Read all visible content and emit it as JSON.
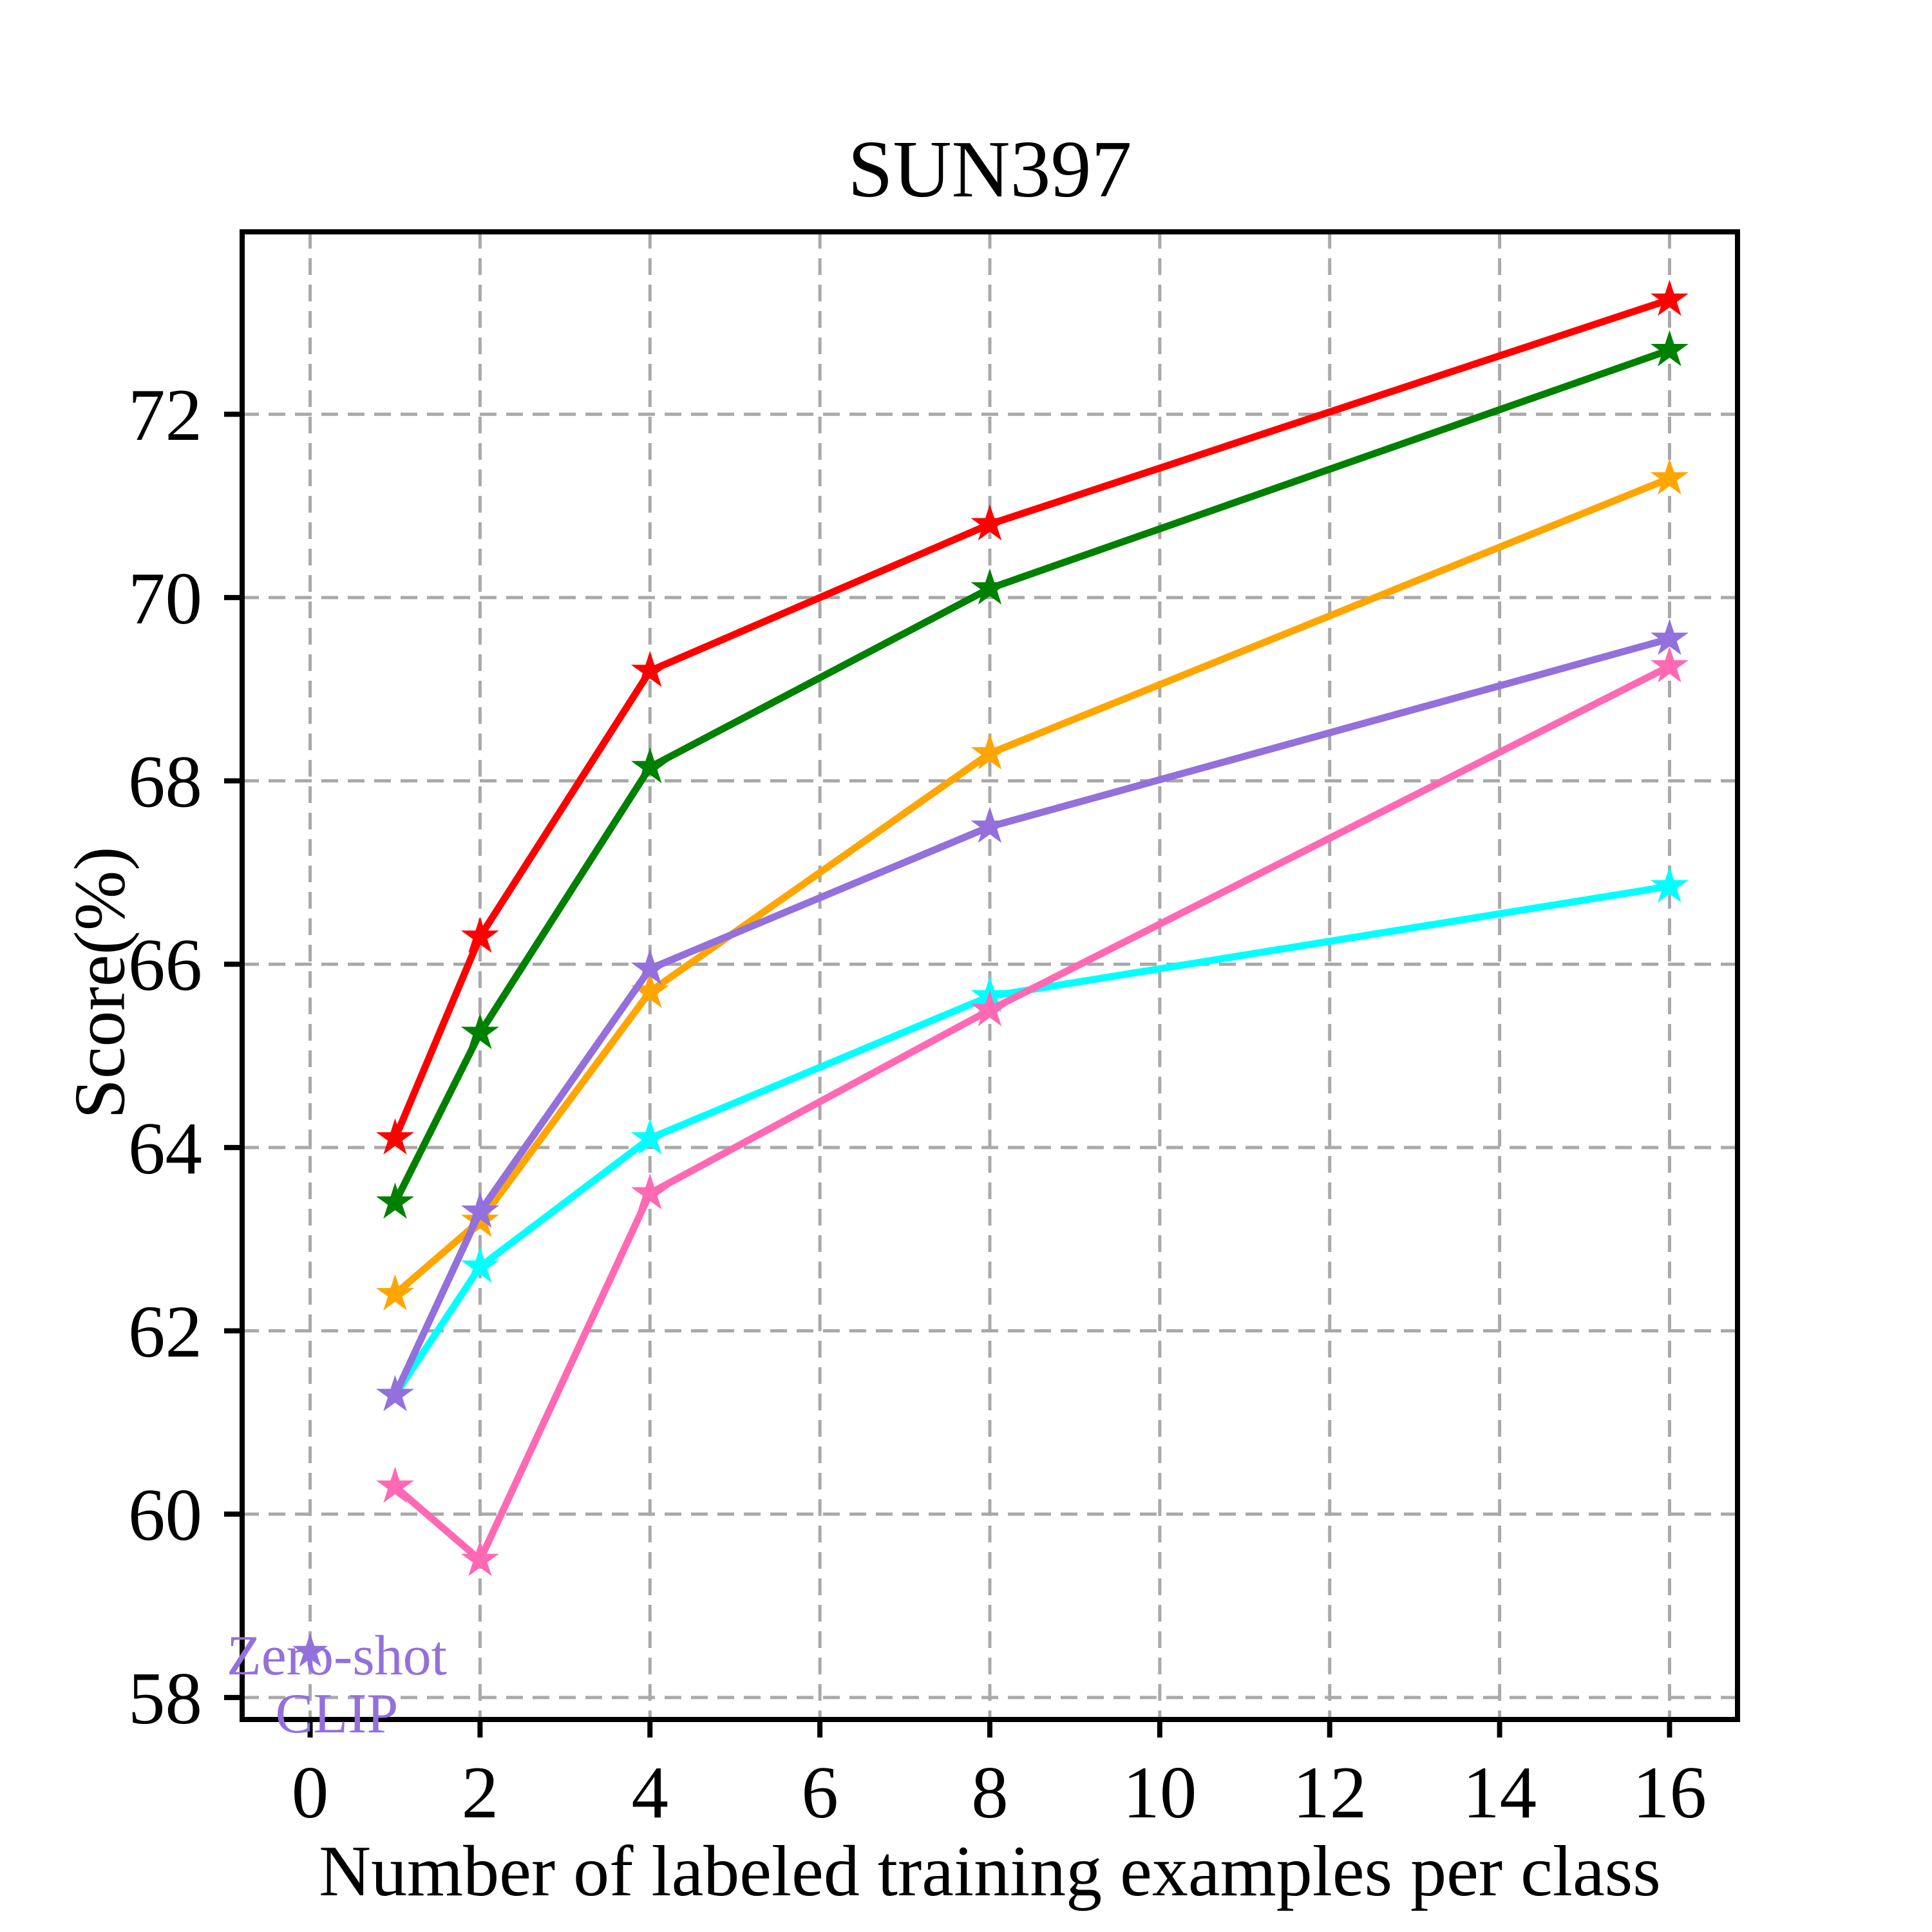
{
  "chart_data": {
    "type": "line",
    "title": "SUN397",
    "xlabel": "Number of labeled training examples per class",
    "ylabel": "Score(%)",
    "xlim": [
      -0.8,
      16.8
    ],
    "ylim": [
      57.76,
      73.99
    ],
    "xticks": [
      0,
      2,
      4,
      6,
      8,
      10,
      12,
      14,
      16
    ],
    "xtick_labels": [
      "0",
      "2",
      "4",
      "6",
      "8",
      "10",
      "12",
      "14",
      "16"
    ],
    "yticks": [
      58,
      60,
      62,
      64,
      66,
      68,
      70,
      72
    ],
    "ytick_labels": [
      "58",
      "60",
      "62",
      "64",
      "66",
      "68",
      "70",
      "72"
    ],
    "grid": "dashed gray both axes",
    "legend_position": "none",
    "marker": "star",
    "x": [
      1,
      2,
      4,
      8,
      16
    ],
    "series": [
      {
        "name": "cyan-series",
        "color": "#00FFFF",
        "values": [
          61.3,
          62.7,
          64.1,
          65.65,
          66.85
        ]
      },
      {
        "name": "pink-series",
        "color": "#FF69B4",
        "values": [
          60.3,
          59.5,
          63.5,
          65.5,
          69.25
        ]
      },
      {
        "name": "orange-series",
        "color": "#FFA500",
        "values": [
          62.4,
          63.2,
          65.7,
          68.3,
          71.3
        ]
      },
      {
        "name": "purple-series",
        "color": "#9370DB",
        "values": [
          61.3,
          63.3,
          65.95,
          67.5,
          69.55
        ]
      },
      {
        "name": "green-series",
        "color": "#008000",
        "values": [
          63.4,
          65.25,
          68.15,
          70.1,
          72.7
        ]
      },
      {
        "name": "red-series",
        "color": "#FF0000",
        "values": [
          64.1,
          66.3,
          69.2,
          70.8,
          73.25
        ]
      }
    ],
    "zero_shot_point": {
      "label_line1": "Zero-shot",
      "label_line2": "CLIP",
      "x": 0,
      "y": 58.5,
      "color": "#9370DB"
    },
    "colors": {
      "gridline": "#A9A9A9",
      "axis": "#000000",
      "text": "#000000",
      "annotation": "#9370DB"
    }
  },
  "texts": {
    "title": "SUN397",
    "xlabel": "Number of labeled training examples per class",
    "ylabel": "Score(%)",
    "annotation1": "Zero-shot",
    "annotation2": "CLIP"
  }
}
